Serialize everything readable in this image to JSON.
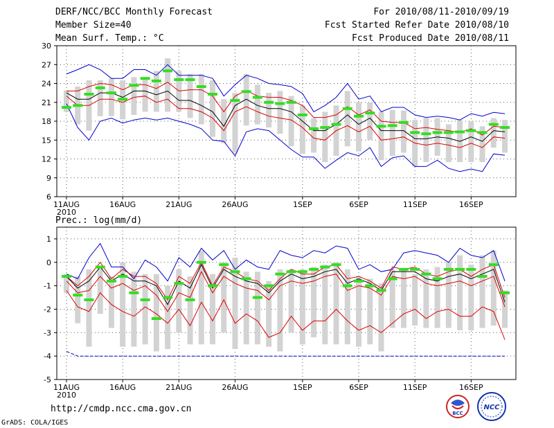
{
  "header": {
    "title": "DERF/NCC/BCC Monthly Forecast",
    "member_size": "Member Size=40",
    "variable": "Mean Surf. Temp.: °C",
    "period": "For 2010/08/11-2010/09/19",
    "start_date": "Fcst Started Refer Date 2010/08/10",
    "produced_date": "Fcst Produced Date 2010/08/11"
  },
  "footer": {
    "url": "http://cmdp.ncc.cma.gov.cn",
    "credit": "GrADS: COLA/IGES",
    "logo_bcc": "BCC",
    "logo_ncc": "NCC"
  },
  "colors": {
    "box": "#d3d3d3",
    "median": "#000000",
    "quartile": "#dd0000",
    "extreme": "#0000cc",
    "obs": "#33dd22",
    "grid": "#555555"
  },
  "chart_data": [
    {
      "type": "box",
      "title": "Mean Surf. Temp.: °C",
      "xlabel": "",
      "ylabel": "°C",
      "ylim": [
        6,
        30
      ],
      "yticks": [
        6,
        9,
        12,
        15,
        18,
        21,
        24,
        27,
        30
      ],
      "xtick_labels": [
        {
          "day": 1,
          "label": "11AUG"
        },
        {
          "day": 6,
          "label": "16AUG"
        },
        {
          "day": 11,
          "label": "21AUG"
        },
        {
          "day": 16,
          "label": "26AUG"
        },
        {
          "day": 22,
          "label": "1SEP"
        },
        {
          "day": 27,
          "label": "6SEP"
        },
        {
          "day": 32,
          "label": "11SEP"
        },
        {
          "day": 37,
          "label": "16SEP"
        }
      ],
      "xyear": "2010",
      "days": [
        1,
        2,
        3,
        4,
        5,
        6,
        7,
        8,
        9,
        10,
        11,
        12,
        13,
        14,
        15,
        16,
        17,
        18,
        19,
        20,
        21,
        22,
        23,
        24,
        25,
        26,
        27,
        28,
        29,
        30,
        31,
        32,
        33,
        34,
        35,
        36,
        37,
        38,
        39,
        40
      ],
      "series": [
        {
          "name": "max",
          "values": [
            25.5,
            26.2,
            27,
            26.2,
            24.8,
            24.8,
            26.2,
            26.2,
            25.3,
            27,
            25.3,
            25.3,
            25.3,
            24.8,
            22,
            23.8,
            25.3,
            24.8,
            24,
            23.8,
            23.5,
            22.4,
            19.5,
            20.5,
            21.8,
            24,
            21.5,
            22,
            19.5,
            20.2,
            20.2,
            19,
            18.6,
            18.8,
            18.6,
            18.2,
            19.2,
            18.8,
            19.4,
            19.2
          ]
        },
        {
          "name": "q75",
          "values": [
            22.8,
            22.8,
            23.5,
            24,
            23.8,
            23,
            23.8,
            23.8,
            23.2,
            24.2,
            22.8,
            23,
            23,
            22,
            19.5,
            22,
            22.9,
            22,
            21.8,
            21.8,
            21.3,
            20.5,
            18.6,
            18.6,
            19,
            20.3,
            19,
            19.8,
            18,
            17.8,
            17.8,
            16.8,
            17,
            16.7,
            16.5,
            16.2,
            16.8,
            15.8,
            17.2,
            17
          ]
        },
        {
          "name": "median",
          "values": [
            22.5,
            21.5,
            21.5,
            22.5,
            22.5,
            21.8,
            22.8,
            22.8,
            22.2,
            22.8,
            21.3,
            21.3,
            20.5,
            19.5,
            17.2,
            20.5,
            21.5,
            20.5,
            20,
            20,
            19.5,
            18,
            16.5,
            16.5,
            17.5,
            19,
            17.5,
            18.5,
            16.5,
            16.5,
            16.5,
            15.2,
            15.2,
            15.5,
            15.3,
            14.8,
            15.5,
            14.8,
            16.5,
            16.3
          ]
        },
        {
          "name": "q25",
          "values": [
            22,
            20.5,
            20.5,
            21.5,
            21.5,
            21,
            21.8,
            22,
            21,
            21.5,
            20,
            20,
            19.5,
            18.5,
            16.5,
            19.5,
            20.3,
            19.5,
            18.8,
            18.5,
            18.2,
            17,
            15.3,
            15,
            16.5,
            17.3,
            16.3,
            17.2,
            15,
            15.2,
            15.5,
            14.5,
            14.2,
            14.5,
            14.2,
            13.8,
            14.5,
            13.8,
            15.5,
            15.3
          ]
        },
        {
          "name": "min",
          "values": [
            20.8,
            17,
            15,
            18,
            18.5,
            17.7,
            18.2,
            18.5,
            18.2,
            18.5,
            18,
            17.5,
            16.8,
            15,
            14.8,
            12.5,
            16.3,
            16.8,
            16.5,
            15,
            13.5,
            12.3,
            12.3,
            10.5,
            11.8,
            13,
            12.5,
            13.8,
            10.8,
            12.2,
            12.5,
            10.8,
            10.8,
            11.8,
            10.5,
            10,
            10.4,
            10,
            12.8,
            12.6
          ]
        },
        {
          "name": "box_high",
          "values": [
            22.9,
            23.5,
            24.5,
            24.5,
            24.8,
            24.5,
            25,
            25,
            26,
            28,
            26,
            25.5,
            25.5,
            24.5,
            21.5,
            22.5,
            25.5,
            23.8,
            22.5,
            22.8,
            22,
            20.5,
            18.5,
            19.5,
            20.5,
            22.8,
            21,
            21,
            19.5,
            19.8,
            19.7,
            18.2,
            18.5,
            18.5,
            17.5,
            18.2,
            18,
            17.2,
            18.5,
            18.2
          ]
        },
        {
          "name": "box_low",
          "values": [
            19.5,
            17.5,
            16.5,
            18.8,
            18.8,
            18.3,
            19,
            19.5,
            19.5,
            19.5,
            19.5,
            18.5,
            17.5,
            15.5,
            14.5,
            13,
            17.3,
            17.5,
            17,
            16,
            14,
            12.8,
            13,
            11.5,
            12.5,
            14,
            13.2,
            15,
            11.8,
            12.5,
            13,
            10.8,
            11.5,
            12.5,
            11.5,
            11.5,
            11.5,
            11.5,
            13.8,
            13
          ]
        },
        {
          "name": "observed",
          "values": [
            20.2,
            20.5,
            22.3,
            23.3,
            22.5,
            21.5,
            23.7,
            24.8,
            24.4,
            26,
            24.6,
            24.6,
            23.5,
            22.3,
            null,
            21.3,
            22.7,
            21.8,
            21,
            20.8,
            21,
            19,
            16.8,
            17,
            17.5,
            20,
            18.8,
            19.3,
            17.2,
            17.3,
            17.8,
            16.2,
            16,
            16.2,
            16.2,
            16.3,
            16.5,
            16.2,
            17.5,
            17
          ]
        }
      ]
    },
    {
      "type": "box",
      "title": "Prec.: log(mm/d)",
      "xlabel": "",
      "ylabel": "log(mm/d)",
      "ylim": [
        -5,
        1.5
      ],
      "yticks": [
        -5,
        -4,
        -3,
        -2,
        -1,
        0,
        1
      ],
      "xtick_labels": [
        {
          "day": 1,
          "label": "11AUG"
        },
        {
          "day": 6,
          "label": "16AUG"
        },
        {
          "day": 11,
          "label": "21AUG"
        },
        {
          "day": 16,
          "label": "26AUG"
        },
        {
          "day": 22,
          "label": "1SEP"
        },
        {
          "day": 27,
          "label": "6SEP"
        },
        {
          "day": 32,
          "label": "11SEP"
        },
        {
          "day": 37,
          "label": "16SEP"
        }
      ],
      "xyear": "2010",
      "days": [
        1,
        2,
        3,
        4,
        5,
        6,
        7,
        8,
        9,
        10,
        11,
        12,
        13,
        14,
        15,
        16,
        17,
        18,
        19,
        20,
        21,
        22,
        23,
        24,
        25,
        26,
        27,
        28,
        29,
        30,
        31,
        32,
        33,
        34,
        35,
        36,
        37,
        38,
        39,
        40
      ],
      "series": [
        {
          "name": "max",
          "values": [
            -0.5,
            -0.7,
            0.2,
            0.8,
            -0.2,
            -0.2,
            -0.7,
            0.1,
            -0.2,
            -0.8,
            0.2,
            -0.2,
            0.6,
            0.1,
            0.5,
            -0.3,
            0.1,
            -0.2,
            -0.3,
            0.5,
            0.3,
            0.2,
            0.5,
            0.4,
            0.7,
            0.6,
            -0.3,
            -0.1,
            -0.4,
            -0.3,
            0.4,
            0.5,
            0.4,
            0.3,
            0,
            0.6,
            0.3,
            0.2,
            0.5,
            -0.8
          ]
        },
        {
          "name": "q75",
          "values": [
            -0.6,
            -1,
            -0.6,
            0,
            -0.7,
            -0.3,
            -0.6,
            -0.6,
            -0.9,
            -1.6,
            -0.6,
            -0.9,
            0,
            -1,
            -0.2,
            -0.4,
            -0.7,
            -0.8,
            -1.2,
            -0.7,
            -0.3,
            -0.5,
            -0.5,
            -0.2,
            -0.1,
            -0.7,
            -0.6,
            -0.8,
            -1.1,
            -0.2,
            -0.3,
            -0.2,
            -0.5,
            -0.6,
            -0.4,
            -0.3,
            -0.6,
            -0.3,
            -0.1,
            -1.5
          ]
        },
        {
          "name": "median",
          "values": [
            -0.6,
            -1.1,
            -0.8,
            -0.2,
            -0.8,
            -0.5,
            -0.8,
            -0.8,
            -1,
            -1.8,
            -0.8,
            -1.1,
            -0.1,
            -1.1,
            -0.3,
            -0.6,
            -0.8,
            -0.9,
            -1.3,
            -0.8,
            -0.5,
            -0.7,
            -0.6,
            -0.4,
            -0.3,
            -0.9,
            -0.7,
            -0.9,
            -1.2,
            -0.4,
            -0.4,
            -0.4,
            -0.7,
            -0.8,
            -0.6,
            -0.5,
            -0.7,
            -0.5,
            -0.3,
            -1.7
          ]
        },
        {
          "name": "q25",
          "values": [
            -0.8,
            -1.3,
            -1.2,
            -0.6,
            -1.1,
            -0.9,
            -1.2,
            -1,
            -1.4,
            -2.1,
            -1.3,
            -1.5,
            -0.4,
            -1.3,
            -0.6,
            -0.9,
            -1.1,
            -1.2,
            -1.6,
            -1,
            -0.8,
            -0.9,
            -0.8,
            -0.6,
            -0.5,
            -1.2,
            -1,
            -1.1,
            -1.4,
            -0.6,
            -0.7,
            -0.6,
            -0.9,
            -1,
            -0.9,
            -0.8,
            -1,
            -0.8,
            -0.6,
            -1.9
          ]
        },
        {
          "name": "min",
          "values": [
            -3.8,
            -4,
            -4,
            -4,
            -4,
            -4,
            -4,
            -4,
            -4,
            -4,
            -4,
            -4,
            -4,
            -4,
            -4,
            -4,
            -4,
            -4,
            -4,
            -4,
            -4,
            -4,
            -4,
            -4,
            -4,
            -4,
            -4,
            -4,
            -4,
            -4,
            -4,
            -4,
            -4,
            -4,
            -4,
            -4,
            -4,
            -4,
            -4,
            -4
          ]
        },
        {
          "name": "p10",
          "values": [
            -1.2,
            -1.9,
            -2.1,
            -1.3,
            -1.8,
            -2.1,
            -2.3,
            -1.9,
            -2.2,
            -2.6,
            -2,
            -2.7,
            -1.7,
            -2.5,
            -1.6,
            -2.6,
            -2.2,
            -2.5,
            -3.2,
            -3,
            -2.3,
            -2.9,
            -2.5,
            -2.5,
            -2,
            -2.5,
            -2.9,
            -2.7,
            -3,
            -2.6,
            -2.2,
            -2,
            -2.4,
            -2.1,
            -2,
            -2.3,
            -2.3,
            -1.9,
            -2.1,
            -3.3
          ]
        },
        {
          "name": "box_high",
          "values": [
            -0.5,
            -0.6,
            -0.3,
            -0.2,
            -0.6,
            0,
            -0.4,
            -0.5,
            -0.5,
            -1,
            -0.3,
            -0.6,
            0.5,
            -0.5,
            0,
            0.2,
            -0.4,
            -0.4,
            -0.8,
            -0.3,
            -0.3,
            -0.3,
            -0.2,
            -0.1,
            0,
            -0.3,
            -0.6,
            -0.7,
            -0.9,
            -0.3,
            -0.3,
            -0.5,
            -0.3,
            -0.2,
            0,
            0.3,
            -0.1,
            0.3,
            0.5,
            -1.2
          ]
        },
        {
          "name": "box_low",
          "values": [
            -1.3,
            -2.6,
            -3.6,
            -2.2,
            -2.8,
            -3.6,
            -3.6,
            -3.5,
            -3.8,
            -3.7,
            -3,
            -3.5,
            -3.5,
            -3.5,
            -3,
            -3.7,
            -3.5,
            -3.5,
            -3.6,
            -3.8,
            -3,
            -3.5,
            -3.2,
            -3.5,
            -3.5,
            -3.5,
            -3.6,
            -3.5,
            -3.8,
            -2.8,
            -2.8,
            -2.7,
            -2.8,
            -2.8,
            -2.8,
            -2.9,
            -2.9,
            -2.8,
            -2.7,
            -2.8
          ]
        },
        {
          "name": "observed",
          "values": [
            -0.6,
            -1.4,
            -1.6,
            -0.2,
            -0.8,
            -0.6,
            -1.3,
            -1.6,
            -2.4,
            -1.5,
            -0.9,
            -1.6,
            0,
            -1,
            -0.1,
            -0.4,
            -0.7,
            -1.5,
            -1,
            -0.5,
            -0.4,
            -0.4,
            -0.3,
            -0.2,
            -0.1,
            -1,
            -0.8,
            -1,
            -1.2,
            -0.7,
            -0.3,
            -0.3,
            -0.5,
            -0.7,
            -0.3,
            -0.3,
            -0.3,
            -0.6,
            -0.1,
            -1.3
          ]
        }
      ]
    }
  ]
}
